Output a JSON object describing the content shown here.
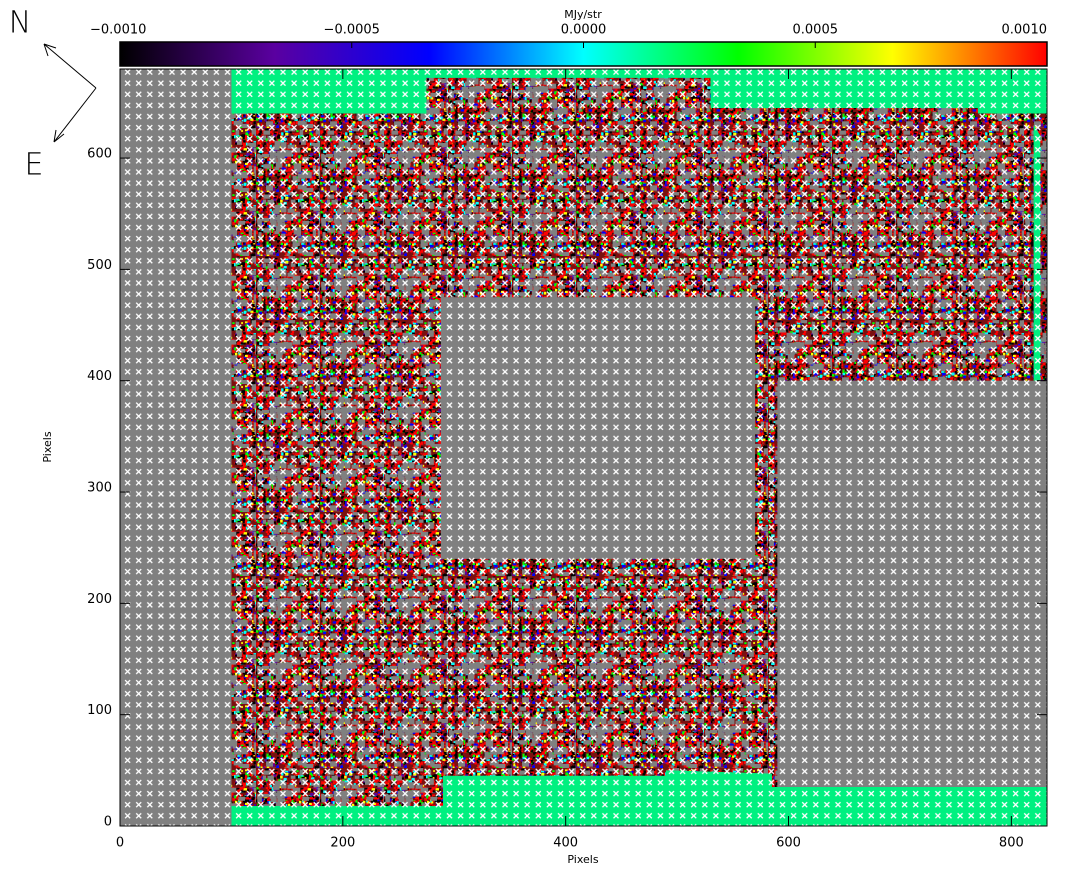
{
  "chart_data": {
    "type": "image",
    "colorbar_label": "MJy/str",
    "colorbar_lim": [
      -0.001,
      0.001
    ],
    "colorbar_ticks": [
      {
        "value": -0.001,
        "label": "−0.0010"
      },
      {
        "value": -0.0005,
        "label": "−0.0005"
      },
      {
        "value": 0,
        "label": "0.0000"
      },
      {
        "value": 0.0005,
        "label": "0.0005"
      },
      {
        "value": 0.001,
        "label": "0.0010"
      }
    ],
    "colormap": [
      "#000000",
      "#5a00a0",
      "#0000ff",
      "#00ffff",
      "#00ff00",
      "#ffff00",
      "#ff0000"
    ],
    "xlabel": "Pixels",
    "ylabel": "Pixels",
    "xlim": [
      0,
      832
    ],
    "ylim": [
      0,
      680
    ],
    "xticks": [
      0,
      200,
      400,
      600,
      800
    ],
    "yticks": [
      0,
      100,
      200,
      300,
      400,
      500,
      600
    ],
    "compass": {
      "north": "N",
      "east": "E"
    }
  }
}
